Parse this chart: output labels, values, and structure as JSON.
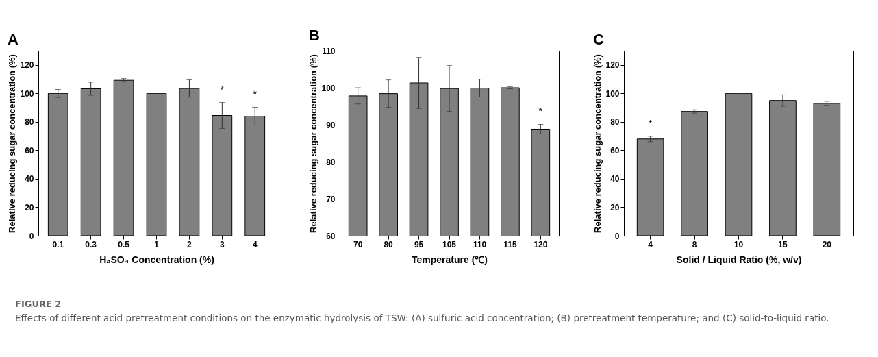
{
  "chart_data": [
    {
      "type": "bar",
      "title": "A",
      "xlabel": "H₂SO₄ Concentration (%)",
      "ylabel": "Relative reducing sugar concentration (%)",
      "categories": [
        "0.1",
        "0.3",
        "0.5",
        "1",
        "2",
        "3",
        "4"
      ],
      "values": [
        100,
        103.3,
        109.2,
        100,
        103.5,
        84.5,
        84
      ],
      "errors": [
        2.8,
        4.6,
        1.2,
        null,
        6.1,
        9.1,
        6.3
      ],
      "color": "#808080",
      "ylim": [
        0,
        130
      ],
      "yticks": [
        0,
        20,
        40,
        60,
        80,
        100,
        120
      ],
      "grid": false,
      "annotations": [
        {
          "text": "*",
          "x": "3",
          "y": 84.5
        },
        {
          "text": "*",
          "x": "4",
          "y": 84
        },
        "FIGURE 2",
        "Effects of different acid pretreatment conditions on the enzymatic hydrolysis of TSW: (A) sulfuric acid concentration; (B) pretreatment temperature; and (C) solid-to-liquid ratio."
      ]
    },
    {
      "type": "bar",
      "title": "B",
      "xlabel": "Temperature (℃)",
      "ylabel": "Relative reducing sugar concentration (%)",
      "categories": [
        "70",
        "80",
        "95",
        "105",
        "110",
        "115",
        "120"
      ],
      "values": [
        97.8,
        98.4,
        101.3,
        99.8,
        99.9,
        100,
        88.8
      ],
      "errors": [
        2.2,
        3.7,
        6.9,
        6.2,
        2.4,
        0.3,
        1.3
      ],
      "color": "#808080",
      "ylim": [
        60,
        110
      ],
      "yticks": [
        60,
        70,
        80,
        90,
        100,
        110
      ],
      "grid": false,
      "annotations": [
        {
          "text": "*",
          "x": "120",
          "y": 88.8
        }
      ]
    },
    {
      "type": "bar",
      "title": "C",
      "xlabel": "Solid / Liquid Ratio (%, w/v)",
      "ylabel": "Relative reducing sugar concentration (%)",
      "categories": [
        "4",
        "8",
        "10",
        "15",
        "20"
      ],
      "values": [
        68,
        87.3,
        100,
        95,
        93
      ],
      "errors": [
        1.9,
        1.2,
        0.2,
        4,
        1.4
      ],
      "color": "#808080",
      "ylim": [
        0,
        130
      ],
      "yticks": [
        0,
        20,
        40,
        60,
        80,
        100,
        120
      ],
      "grid": false,
      "annotations": [
        {
          "text": "*",
          "x": "4",
          "y": 68
        }
      ]
    }
  ]
}
